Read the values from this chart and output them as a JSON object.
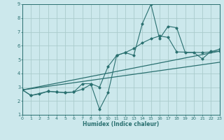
{
  "xlabel": "Humidex (Indice chaleur)",
  "bg_color": "#cce8ec",
  "grid_color": "#aacccc",
  "line_color": "#2a7070",
  "xlim": [
    0,
    23
  ],
  "ylim": [
    1,
    9
  ],
  "xticks": [
    0,
    1,
    2,
    3,
    4,
    5,
    6,
    7,
    8,
    9,
    10,
    11,
    12,
    13,
    14,
    15,
    16,
    17,
    18,
    19,
    20,
    21,
    22,
    23
  ],
  "yticks": [
    1,
    2,
    3,
    4,
    5,
    6,
    7,
    8,
    9
  ],
  "line1_x": [
    0,
    1,
    2,
    3,
    4,
    5,
    6,
    7,
    8,
    9,
    10,
    11,
    12,
    13,
    14,
    15,
    16,
    17,
    18,
    19,
    20,
    21,
    22,
    23
  ],
  "line1_y": [
    2.8,
    2.4,
    2.5,
    2.7,
    2.65,
    2.6,
    2.65,
    2.85,
    3.2,
    1.4,
    2.6,
    5.3,
    5.5,
    5.3,
    7.6,
    9.0,
    6.5,
    7.4,
    7.3,
    5.5,
    5.5,
    5.05,
    5.6,
    5.6
  ],
  "line2_x": [
    0,
    1,
    3,
    4,
    5,
    6,
    7,
    8,
    9,
    10,
    11,
    12,
    13,
    14,
    15,
    16,
    17,
    18,
    21,
    22,
    23
  ],
  "line2_y": [
    2.8,
    2.4,
    2.7,
    2.65,
    2.6,
    2.65,
    3.25,
    3.25,
    3.0,
    4.5,
    5.3,
    5.5,
    5.8,
    6.2,
    6.5,
    6.7,
    6.6,
    5.55,
    5.5,
    5.55,
    5.75
  ],
  "line3_x": [
    0,
    23
  ],
  "line3_y": [
    2.8,
    5.6
  ],
  "line4_x": [
    0,
    23
  ],
  "line4_y": [
    2.8,
    4.8
  ]
}
